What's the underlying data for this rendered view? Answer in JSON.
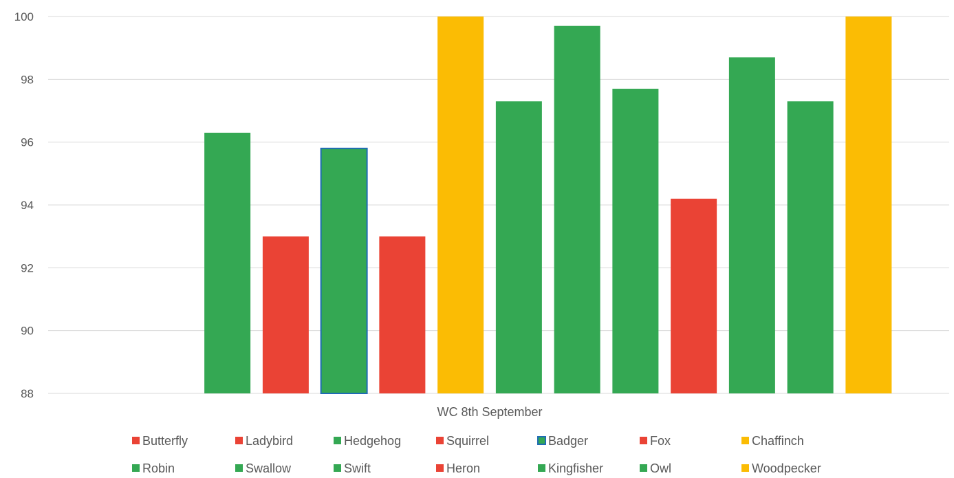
{
  "chart_data": {
    "type": "bar",
    "title": "",
    "xlabel": "",
    "ylabel": "",
    "categories": [
      "WC 8th September"
    ],
    "ylim": [
      88,
      100
    ],
    "yticks": [
      88,
      90,
      92,
      94,
      96,
      98,
      100
    ],
    "grid": true,
    "legend_position": "bottom",
    "series": [
      {
        "name": "Butterfly",
        "values": [
          null
        ],
        "color": "#EA4335"
      },
      {
        "name": "Ladybird",
        "values": [
          null
        ],
        "color": "#EA4335"
      },
      {
        "name": "Hedgehog",
        "values": [
          96.3
        ],
        "color": "#34A853"
      },
      {
        "name": "Squirrel",
        "values": [
          93.0
        ],
        "color": "#EA4335"
      },
      {
        "name": "Badger",
        "values": [
          95.8
        ],
        "color": "#34A853",
        "outline": "#1F6BB5"
      },
      {
        "name": "Fox",
        "values": [
          93.0
        ],
        "color": "#EA4335"
      },
      {
        "name": "Chaffinch",
        "values": [
          100
        ],
        "color": "#FBBC04"
      },
      {
        "name": "Robin",
        "values": [
          97.3
        ],
        "color": "#34A853"
      },
      {
        "name": "Swallow",
        "values": [
          99.7
        ],
        "color": "#34A853"
      },
      {
        "name": "Swift",
        "values": [
          97.7
        ],
        "color": "#34A853"
      },
      {
        "name": "Heron",
        "values": [
          94.2
        ],
        "color": "#EA4335"
      },
      {
        "name": "Kingfisher",
        "values": [
          98.7
        ],
        "color": "#34A853"
      },
      {
        "name": "Owl",
        "values": [
          97.3
        ],
        "color": "#34A853"
      },
      {
        "name": "Woodpecker",
        "values": [
          100
        ],
        "color": "#FBBC04"
      }
    ]
  }
}
